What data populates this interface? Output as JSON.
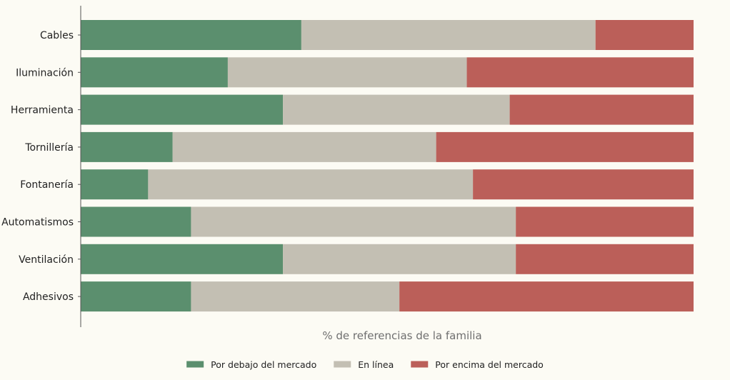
{
  "chart_data": {
    "type": "bar",
    "orientation": "horizontal",
    "stacked": true,
    "categories": [
      "Cables",
      "Iluminación",
      "Herramienta",
      "Tornillería",
      "Fontanería",
      "Automatismos",
      "Ventilación",
      "Adhesivos"
    ],
    "series": [
      {
        "name": "Por debajo del mercado",
        "color": "#5b8f6e",
        "values": [
          36,
          24,
          33,
          15,
          11,
          18,
          33,
          18
        ]
      },
      {
        "name": "En línea",
        "color": "#c3bfb3",
        "values": [
          48,
          39,
          37,
          43,
          53,
          53,
          38,
          34
        ]
      },
      {
        "name": "Por encima del mercado",
        "color": "#bb5f59",
        "values": [
          16,
          37,
          30,
          42,
          36,
          29,
          29,
          48
        ]
      }
    ],
    "xlabel": "% de referencias de la familia",
    "ylabel": "",
    "xlim": [
      0,
      100
    ],
    "grid": false,
    "legend": "bottom-center"
  }
}
